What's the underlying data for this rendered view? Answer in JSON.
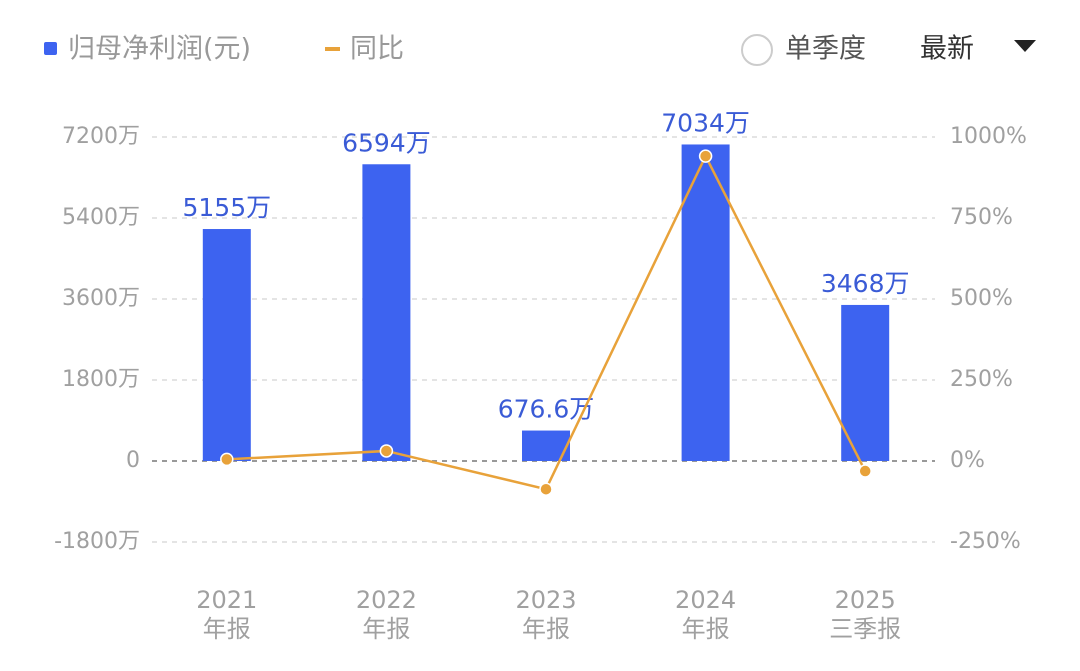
{
  "chart_data": {
    "type": "bar",
    "categories": [
      [
        "2021",
        "年报"
      ],
      [
        "2022",
        "年报"
      ],
      [
        "2023",
        "年报"
      ],
      [
        "2024",
        "年报"
      ],
      [
        "2025",
        "三季报"
      ]
    ],
    "series": [
      {
        "name": "归母净利润(元)",
        "type": "bar",
        "color": "#3d63f0",
        "axis": "y",
        "values": [
          5155,
          6594,
          676.6,
          7034,
          3468
        ],
        "value_labels": [
          "5155万",
          "6594万",
          "676.6万",
          "7034万",
          "3468万"
        ]
      },
      {
        "name": "同比",
        "type": "line",
        "color": "#e8a23a",
        "axis": "y2",
        "values": [
          5,
          31,
          -87,
          941,
          -31
        ]
      }
    ],
    "ylim": [
      -1800,
      7200
    ],
    "yticks": [
      {
        "value": -1800,
        "label": "-1800万"
      },
      0,
      {
        "value": 1800,
        "label": "1800万"
      },
      {
        "value": 3600,
        "label": "3600万"
      },
      {
        "value": 5400,
        "label": "5400万"
      },
      {
        "value": 7200,
        "label": "7200万"
      }
    ],
    "y2lim": [
      -250,
      1000
    ],
    "y2ticks": [
      {
        "value": -250,
        "label": "-250%"
      },
      {
        "value": 0,
        "label": "0%"
      },
      {
        "value": 250,
        "label": "250%"
      },
      {
        "value": 500,
        "label": "500%"
      },
      {
        "value": 750,
        "label": "750%"
      },
      {
        "value": 1000,
        "label": "1000%"
      }
    ],
    "grid": true
  },
  "controls": {
    "single_quarter": "单季度",
    "period": "最新"
  }
}
